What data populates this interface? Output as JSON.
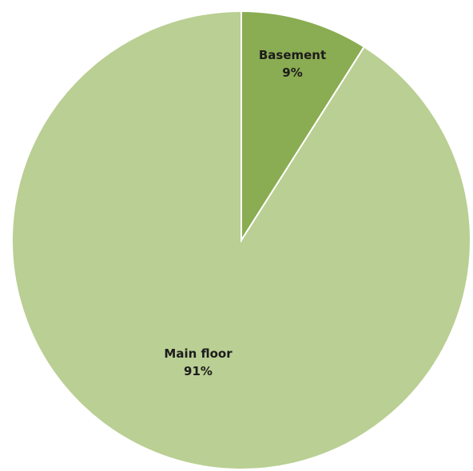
{
  "chart_data": {
    "type": "pie",
    "title": "",
    "start_angle_deg": 0,
    "direction": "clockwise",
    "slices": [
      {
        "name": "Basement",
        "value": 9,
        "label": "9%",
        "color": "#8aac52"
      },
      {
        "name": "Main floor",
        "value": 91,
        "label": "91%",
        "color": "#bacf93"
      }
    ],
    "border_color": "#ffffff"
  }
}
